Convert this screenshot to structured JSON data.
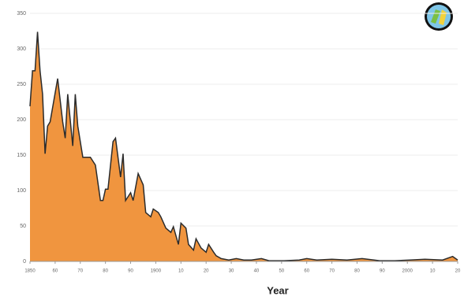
{
  "chart_data": {
    "type": "area",
    "x_label": "Year",
    "x": [
      1850,
      1851,
      1852,
      1853,
      1854,
      1855,
      1856,
      1857,
      1858,
      1861,
      1863,
      1864,
      1865,
      1867,
      1868,
      1869,
      1871,
      1874,
      1876,
      1878,
      1879,
      1880,
      1881,
      1883,
      1884,
      1886,
      1887,
      1888,
      1890,
      1891,
      1893,
      1895,
      1896,
      1898,
      1899,
      1901,
      1902,
      1904,
      1906,
      1907,
      1909,
      1910,
      1912,
      1913,
      1915,
      1916,
      1918,
      1920,
      1921,
      1923,
      1924,
      1926,
      1929,
      1932,
      1935,
      1938,
      1942,
      1945,
      1951,
      1957,
      1960,
      1964,
      1970,
      1976,
      1982,
      1989,
      1995,
      2001,
      2007,
      2014,
      2018,
      2020
    ],
    "values": [
      219,
      269,
      269,
      324,
      269,
      236,
      152,
      191,
      197,
      258,
      197,
      174,
      236,
      163,
      236,
      191,
      147,
      147,
      136,
      86,
      86,
      102,
      102,
      169,
      174,
      119,
      152,
      86,
      97,
      86,
      124,
      108,
      69,
      63,
      74,
      69,
      63,
      47,
      41,
      49,
      24,
      54,
      47,
      24,
      16,
      32,
      19,
      13,
      24,
      13,
      8,
      4,
      2,
      4,
      2,
      2,
      4,
      1,
      1,
      2,
      4,
      2,
      3,
      2,
      4,
      1,
      1,
      2,
      3,
      2,
      7,
      2
    ],
    "color": "#f0953f",
    "line_color": "#2b2b2b",
    "xlim": [
      1850,
      2020
    ],
    "xticks": [
      {
        "value": 1850,
        "label": "1850"
      },
      {
        "value": 1860,
        "label": "60"
      },
      {
        "value": 1870,
        "label": "70"
      },
      {
        "value": 1880,
        "label": "80"
      },
      {
        "value": 1890,
        "label": "90"
      },
      {
        "value": 1900,
        "label": "1900"
      },
      {
        "value": 1910,
        "label": "10"
      },
      {
        "value": 1920,
        "label": "20"
      },
      {
        "value": 1930,
        "label": "30"
      },
      {
        "value": 1940,
        "label": "40"
      },
      {
        "value": 1950,
        "label": "50"
      },
      {
        "value": 1960,
        "label": "60"
      },
      {
        "value": 1970,
        "label": "70"
      },
      {
        "value": 1980,
        "label": "80"
      },
      {
        "value": 1990,
        "label": "90"
      },
      {
        "value": 2000,
        "label": "2000"
      },
      {
        "value": 2010,
        "label": "10"
      },
      {
        "value": 2020,
        "label": "20"
      }
    ],
    "ylim": [
      0,
      350
    ],
    "yticks": [
      0,
      50,
      100,
      150,
      200,
      250,
      300,
      350
    ],
    "grid": true
  }
}
